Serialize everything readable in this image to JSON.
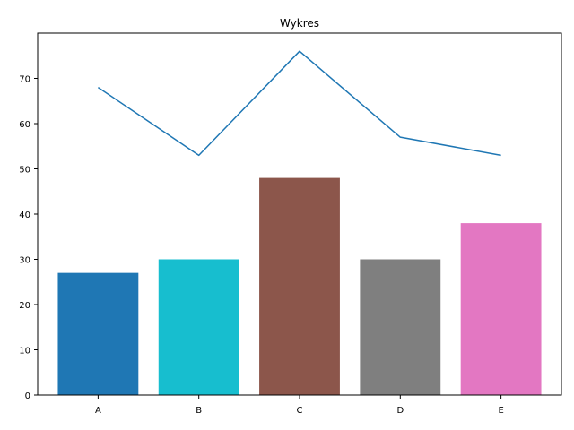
{
  "chart_data": {
    "type": "bar",
    "title": "Wykres",
    "xlabel": "",
    "ylabel": "",
    "categories": [
      "A",
      "B",
      "C",
      "D",
      "E"
    ],
    "series": [
      {
        "type": "bar",
        "values": [
          27,
          30,
          48,
          30,
          38
        ],
        "colors": [
          "#1f77b4",
          "#17becf",
          "#8c564b",
          "#7f7f7f",
          "#e377c2"
        ]
      },
      {
        "type": "line",
        "values": [
          68,
          53,
          76,
          57,
          53
        ],
        "color": "#1f77b4"
      }
    ],
    "ylim": [
      0,
      80
    ],
    "yticks": [
      0,
      10,
      20,
      30,
      40,
      50,
      60,
      70
    ],
    "grid": false,
    "legend": "none"
  }
}
